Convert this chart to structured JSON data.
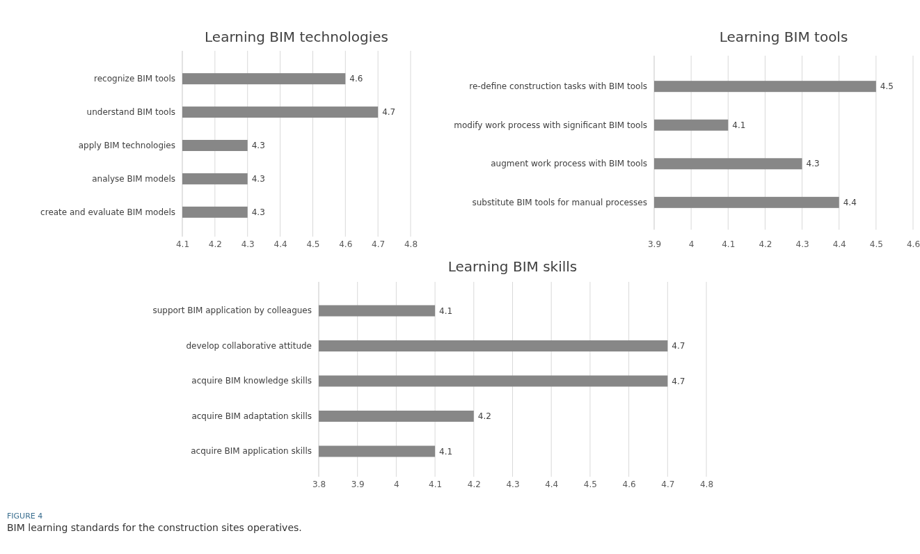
{
  "chart_data": [
    {
      "type": "bar",
      "orientation": "horizontal",
      "title": "Learning BIM technologies",
      "categories": [
        "recognize BIM tools",
        "understand BIM tools",
        "apply BIM technologies",
        "analyse BIM models",
        "create and evaluate BIM models"
      ],
      "values": [
        4.6,
        4.7,
        4.3,
        4.3,
        4.3
      ],
      "color": "#878787",
      "xlim": [
        4.1,
        4.8
      ],
      "xticks": [
        4.1,
        4.2,
        4.3,
        4.4,
        4.5,
        4.6,
        4.7,
        4.8
      ],
      "grid": "x",
      "data_labels": true
    },
    {
      "type": "bar",
      "orientation": "horizontal",
      "title": "Learning BIM tools",
      "categories": [
        "re-define construction tasks with BIM tools",
        "modify work process with significant BIM tools",
        "augment work process with BIM tools",
        "substitute BIM tools for manual processes"
      ],
      "values": [
        4.5,
        4.1,
        4.3,
        4.4
      ],
      "color": "#878787",
      "xlim": [
        3.9,
        4.6
      ],
      "xticks": [
        3.9,
        4,
        4.1,
        4.2,
        4.3,
        4.4,
        4.5,
        4.6
      ],
      "grid": "x",
      "data_labels": true
    },
    {
      "type": "bar",
      "orientation": "horizontal",
      "title": "Learning BIM skills",
      "categories": [
        "support BIM application by colleagues",
        "develop collaborative attitude",
        "acquire BIM knowledge skills",
        "acquire BIM adaptation skills",
        "acquire BIM application skills"
      ],
      "values": [
        4.1,
        4.7,
        4.7,
        4.2,
        4.1
      ],
      "color": "#878787",
      "xlim": [
        3.8,
        4.8
      ],
      "xticks": [
        3.8,
        3.9,
        4,
        4.1,
        4.2,
        4.3,
        4.4,
        4.5,
        4.6,
        4.7,
        4.8
      ],
      "grid": "x",
      "data_labels": true,
      "annotations": [
        "FIGURE 4",
        "BIM learning standards for the construction sites operatives."
      ]
    }
  ]
}
